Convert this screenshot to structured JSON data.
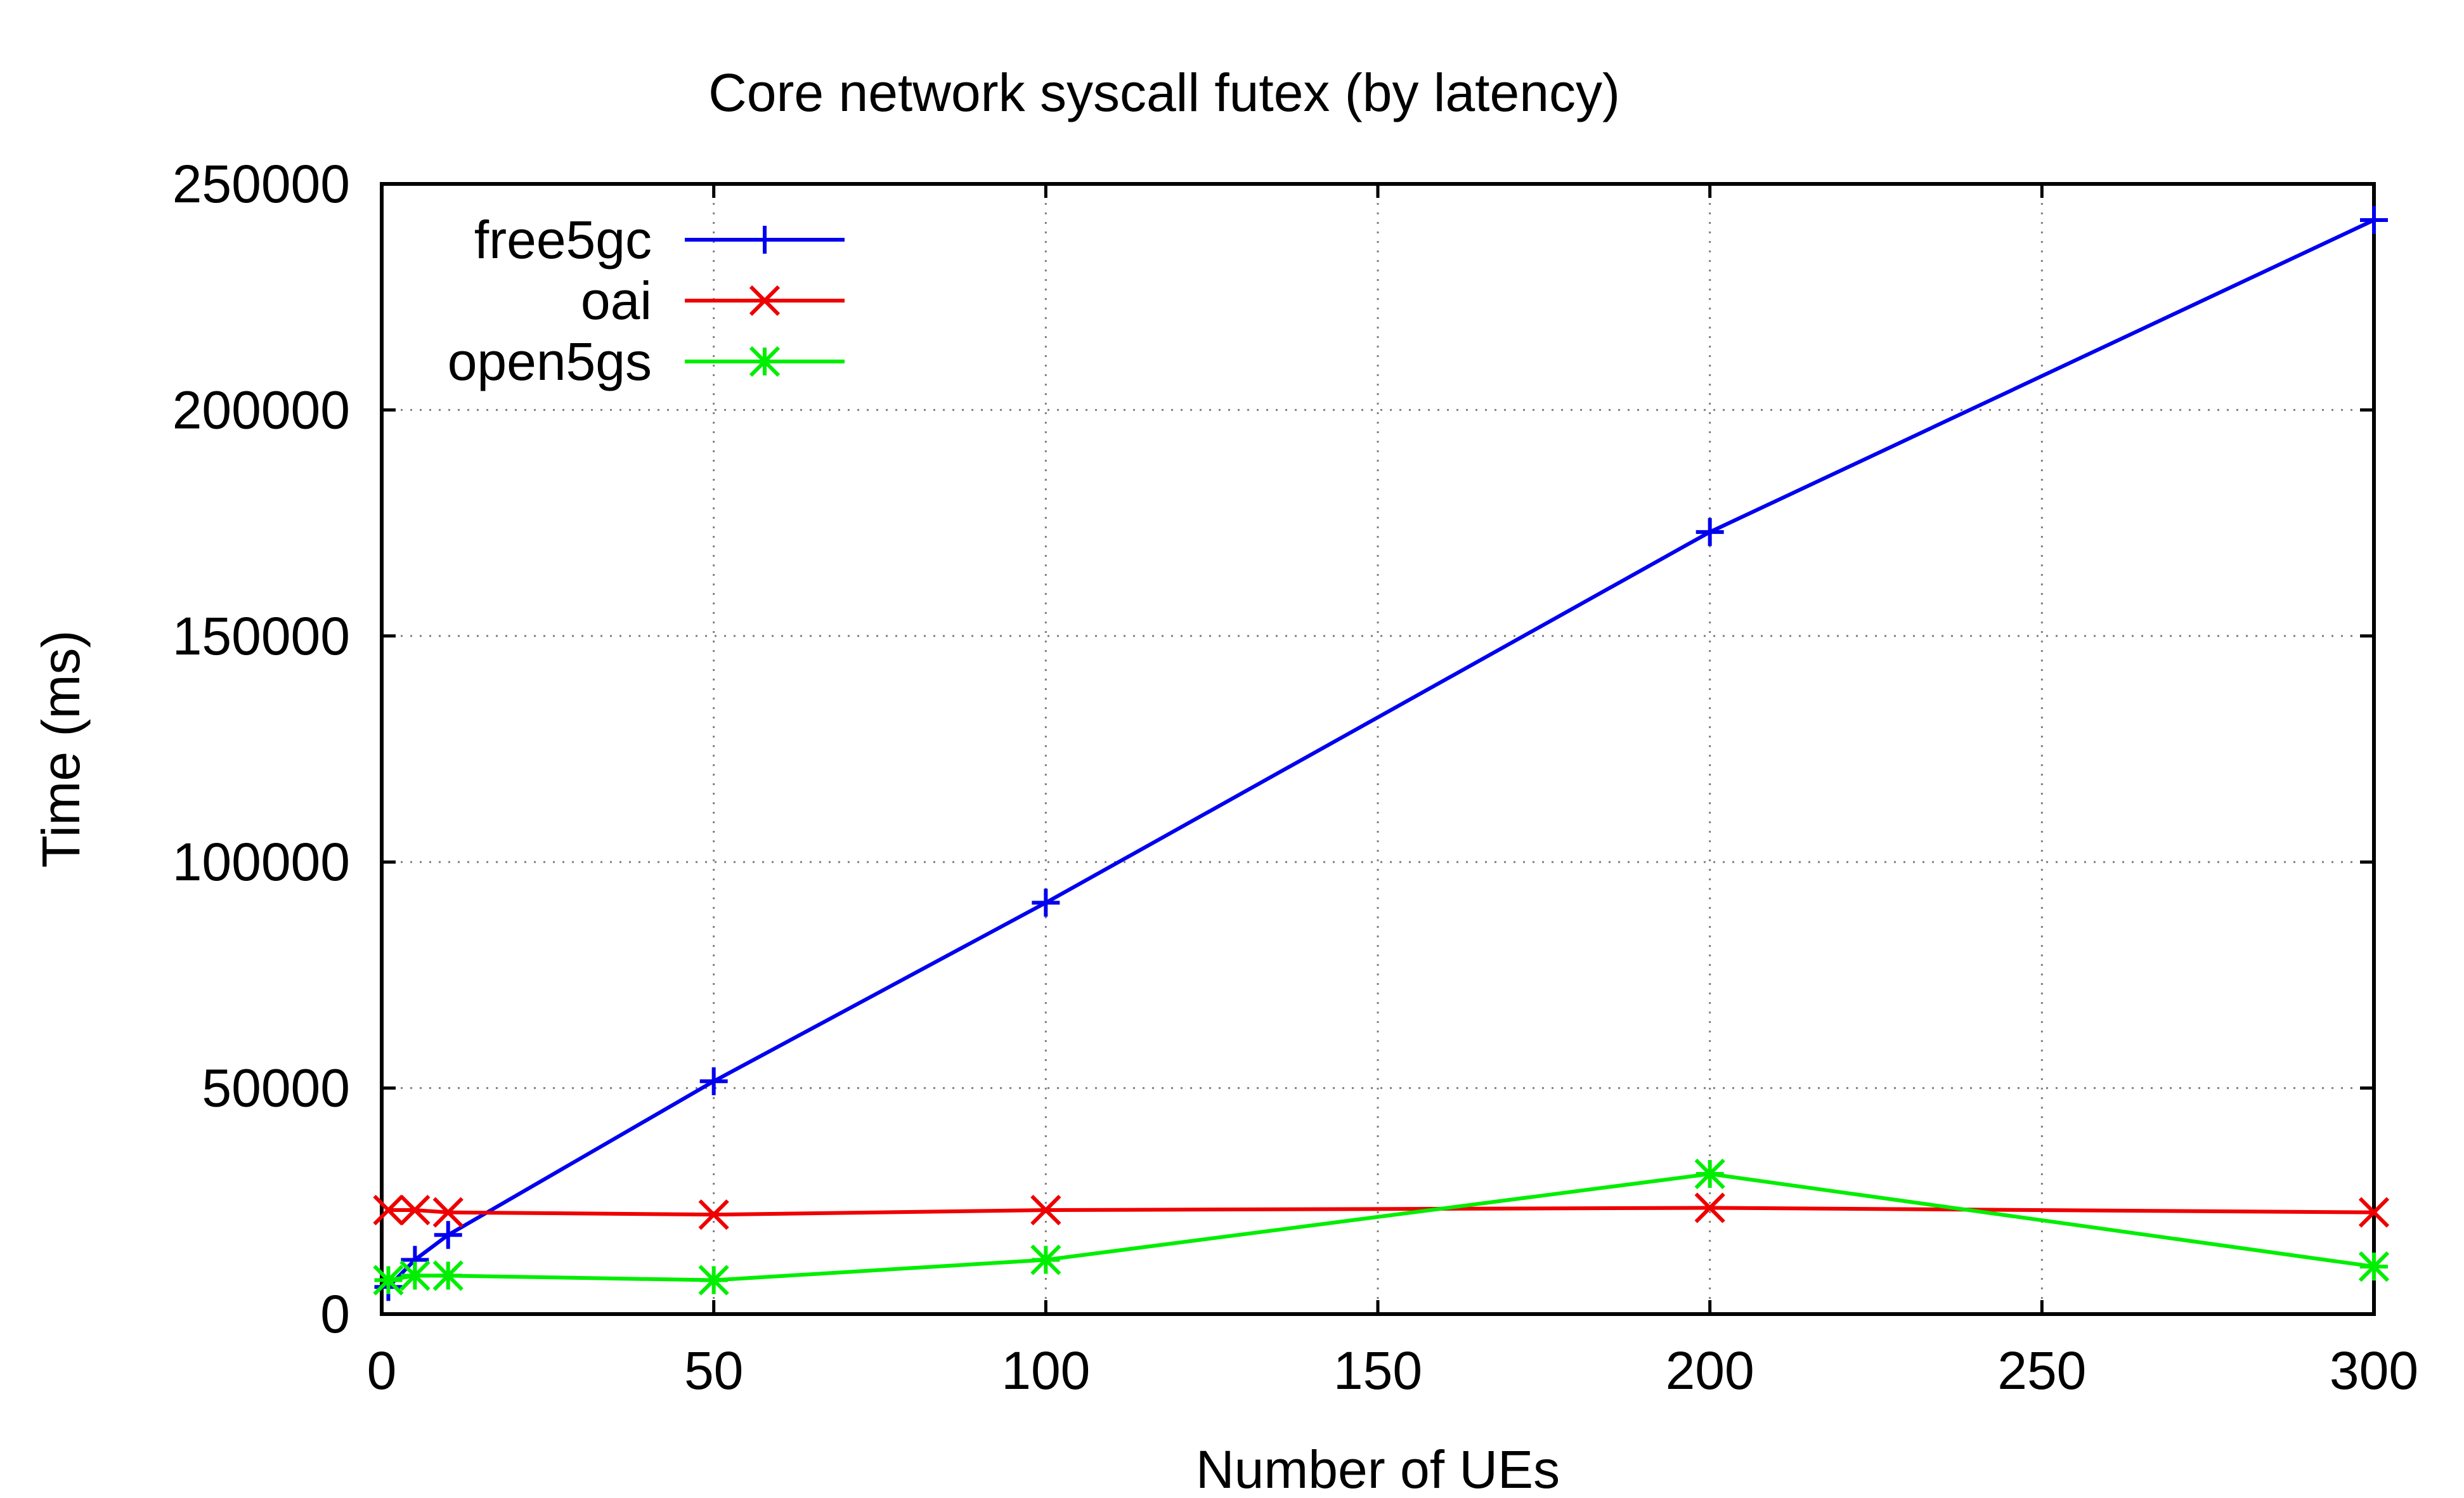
{
  "chart_data": {
    "type": "line",
    "title": "Core network syscall futex (by latency)",
    "xlabel": "Number of UEs",
    "ylabel": "Time (ms)",
    "xlim": [
      0,
      300
    ],
    "ylim": [
      0,
      250000
    ],
    "xticks": [
      0,
      50,
      100,
      150,
      200,
      250,
      300
    ],
    "yticks": [
      0,
      50000,
      100000,
      150000,
      200000,
      250000
    ],
    "xtick_labels": [
      "0",
      "50",
      "100",
      "150",
      "200",
      "250",
      "300"
    ],
    "ytick_labels": [
      "0",
      "50000",
      "100000",
      "150000",
      "200000",
      "250000"
    ],
    "grid": true,
    "legend_position": "top-left",
    "series": [
      {
        "name": "free5gc",
        "color": "#0000ee",
        "marker": "plus",
        "x": [
          1,
          5,
          10,
          50,
          100,
          200,
          300
        ],
        "y": [
          6000,
          12000,
          17500,
          51500,
          91000,
          173000,
          242000
        ]
      },
      {
        "name": "oai",
        "color": "#ee0000",
        "marker": "cross",
        "x": [
          1,
          5,
          10,
          50,
          100,
          200,
          300
        ],
        "y": [
          23000,
          23000,
          22500,
          22000,
          23000,
          23500,
          22500
        ]
      },
      {
        "name": "open5gs",
        "color": "#00ee00",
        "marker": "star",
        "x": [
          1,
          5,
          10,
          50,
          100,
          200,
          300
        ],
        "y": [
          7500,
          8500,
          8500,
          7500,
          12000,
          31000,
          10500
        ]
      }
    ]
  }
}
